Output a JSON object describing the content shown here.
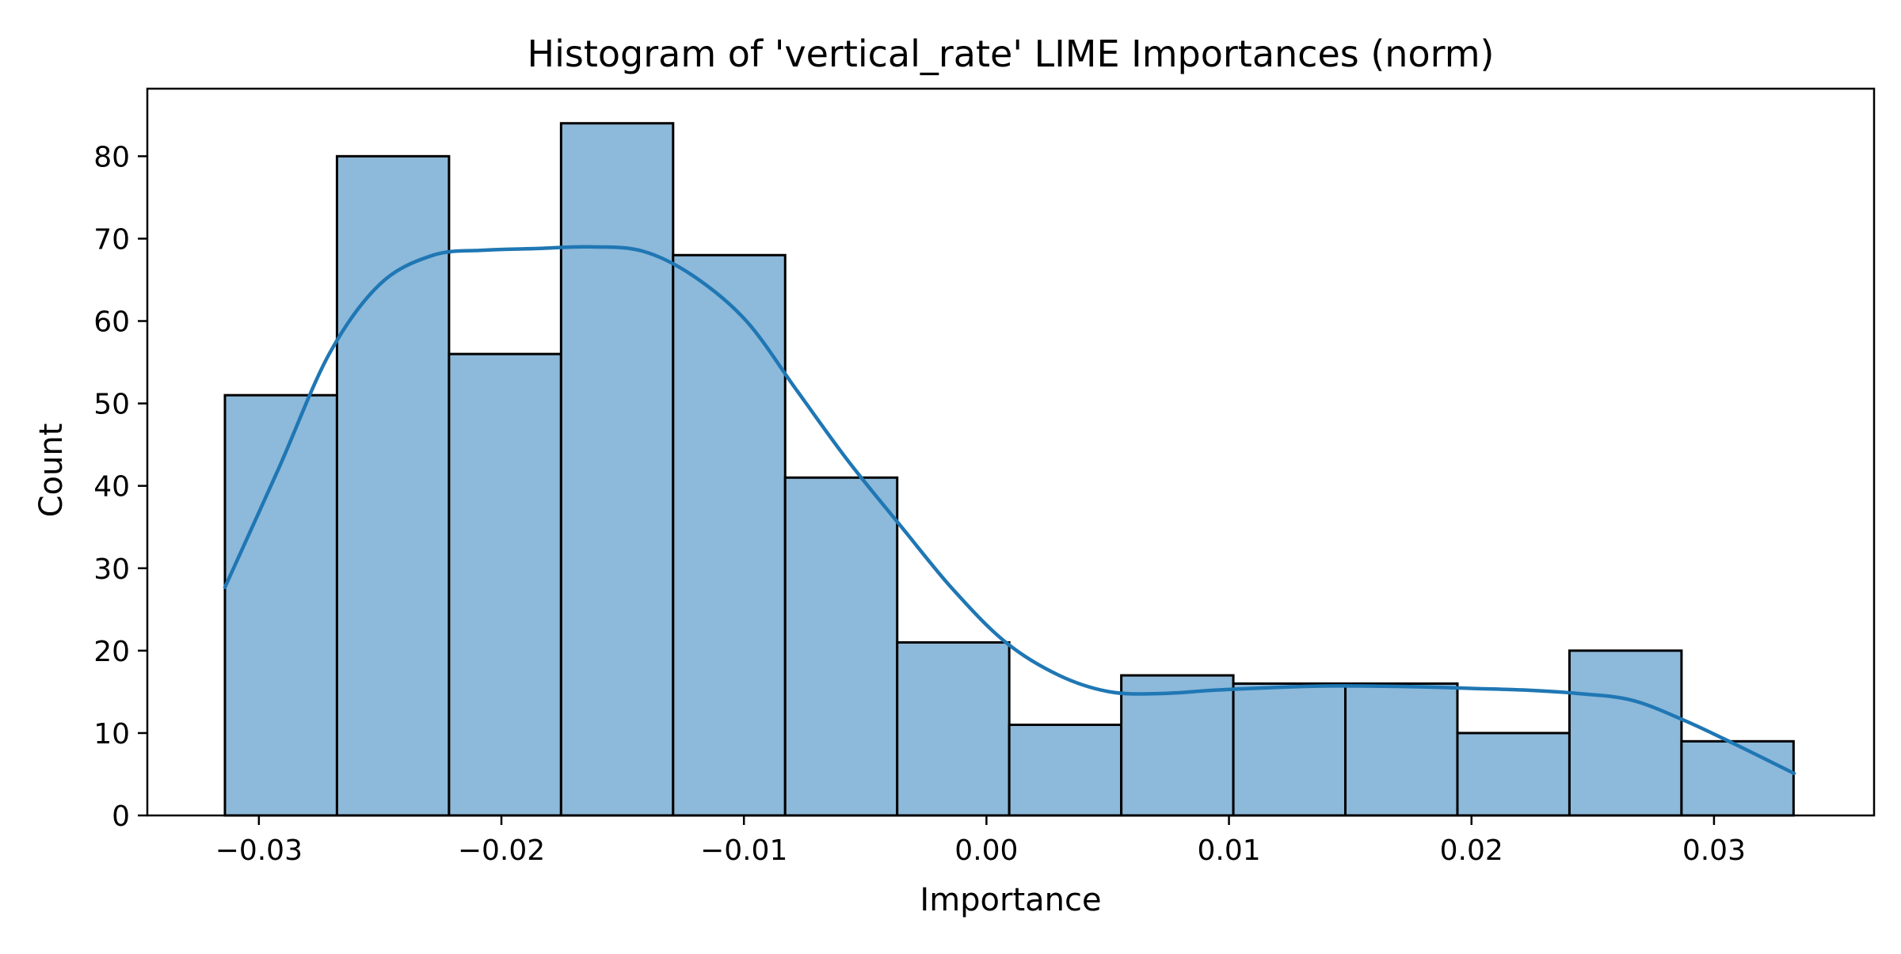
{
  "chart_data": {
    "type": "histogram",
    "title": "Histogram of 'vertical_rate' LIME Importances (norm)",
    "xlabel": "Importance",
    "ylabel": "Count",
    "xlim": [
      -0.0346,
      0.0366
    ],
    "ylim": [
      0,
      88.2
    ],
    "x_ticks": [
      -0.03,
      -0.02,
      -0.01,
      0.0,
      0.01,
      0.02,
      0.03
    ],
    "x_tick_labels": [
      "−0.03",
      "−0.02",
      "−0.01",
      "0.00",
      "0.01",
      "0.02",
      "0.03"
    ],
    "y_ticks": [
      0,
      10,
      20,
      30,
      40,
      50,
      60,
      70,
      80
    ],
    "y_tick_labels": [
      "0",
      "10",
      "20",
      "30",
      "40",
      "50",
      "60",
      "70",
      "80"
    ],
    "bin_edges": [
      -0.0314,
      -0.02678,
      -0.02216,
      -0.01754,
      -0.01292,
      -0.0083,
      -0.00368,
      0.00094,
      0.00556,
      0.01018,
      0.0148,
      0.01942,
      0.02404,
      0.02866,
      0.03328
    ],
    "counts": [
      51,
      80,
      56,
      84,
      68,
      41,
      21,
      11,
      17,
      16,
      16,
      10,
      20,
      9
    ],
    "kde": {
      "x": [
        -0.0314,
        -0.0292,
        -0.0271,
        -0.025,
        -0.0228,
        -0.0207,
        -0.0185,
        -0.0164,
        -0.0142,
        -0.0121,
        -0.0099,
        -0.0078,
        -0.0057,
        -0.0035,
        -0.0014,
        0.0008,
        0.003,
        0.0051,
        0.0072,
        0.0094,
        0.0116,
        0.0137,
        0.0159,
        0.018,
        0.0202,
        0.0223,
        0.0244,
        0.0266,
        0.0288,
        0.0309,
        0.0333
      ],
      "y": [
        27.7,
        42,
        56,
        64.5,
        68,
        68.6,
        68.8,
        69,
        68.5,
        65.5,
        60,
        51.5,
        43,
        35,
        27.5,
        21,
        17,
        15,
        14.8,
        15.2,
        15.5,
        15.7,
        15.7,
        15.6,
        15.4,
        15.2,
        14.8,
        14,
        11.5,
        8.6,
        5.1
      ]
    },
    "bar_color": "#8db9da",
    "bar_edge_color": "#000000",
    "kde_color": "#1f77b4",
    "grid": false,
    "legend": "none"
  }
}
